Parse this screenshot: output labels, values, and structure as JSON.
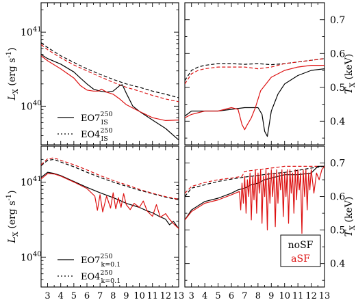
{
  "colors": {
    "noSF": "#000000",
    "aSF": "#dd1111"
  },
  "chart_data": [
    {
      "id": "top-left",
      "type": "line",
      "ylabel": "L_X (erg s^-1)",
      "yscale": "log",
      "xlim": [
        2.5,
        13
      ],
      "ylim": [
        3e+39,
        2.5e+41
      ],
      "yticks": [
        {
          "v": 1e+40,
          "label": "10^40"
        },
        {
          "v": 1e+41,
          "label": "10^41"
        }
      ],
      "legend": [
        {
          "text": "EO7",
          "sup": "250",
          "sub": "IS",
          "style": "solid"
        },
        {
          "text": "EO4",
          "sup": "250",
          "sub": "IS",
          "style": "dotted"
        }
      ],
      "series": [
        {
          "model": "EO4",
          "sf": "noSF",
          "dash": true,
          "x": [
            2.5,
            3,
            4,
            5,
            6,
            7,
            8,
            9,
            10,
            11,
            12,
            13
          ],
          "y": [
            7.2e+40,
            6.2e+40,
            4.8e+40,
            3.9e+40,
            3.2e+40,
            2.7e+40,
            2.3e+40,
            2e+40,
            1.8e+40,
            1.6e+40,
            1.45e+40,
            1.3e+40
          ]
        },
        {
          "model": "EO4",
          "sf": "aSF",
          "dash": true,
          "x": [
            2.5,
            3,
            4,
            5,
            6,
            7,
            8,
            9,
            10,
            11,
            12,
            13
          ],
          "y": [
            6.8e+40,
            5.8e+40,
            4.5e+40,
            3.6e+40,
            3e+40,
            2.5e+40,
            2.1e+40,
            1.8e+40,
            1.6e+40,
            1.4e+40,
            1.25e+40,
            1.15e+40
          ]
        },
        {
          "model": "EO7",
          "sf": "noSF",
          "dash": false,
          "x": [
            2.5,
            3,
            4,
            5,
            5.5,
            6,
            6.5,
            7,
            7.5,
            8,
            8.5,
            8.7,
            9,
            9.5,
            10,
            11,
            12,
            13
          ],
          "y": [
            5e+40,
            4.4e+40,
            3.7e+40,
            2.9e+40,
            2.4e+40,
            2e+40,
            1.7e+40,
            1.6e+40,
            1.55e+40,
            1.6e+40,
            1.9e+40,
            1.95e+40,
            1.5e+40,
            1e+40,
            8.5e+39,
            6.5e+39,
            5e+39,
            3.5e+39
          ]
        },
        {
          "model": "EO7",
          "sf": "aSF",
          "dash": false,
          "x": [
            2.5,
            3,
            4,
            5,
            5.5,
            6,
            6.5,
            6.9,
            7.1,
            7.5,
            8,
            8.5,
            9,
            10,
            11,
            12,
            13
          ],
          "y": [
            4.8e+40,
            4.1e+40,
            3.2e+40,
            2.4e+40,
            1.9e+40,
            1.65e+40,
            1.6e+40,
            1.6e+40,
            1.7e+40,
            1.55e+40,
            1.45e+40,
            1.25e+40,
            1.05e+40,
            8.5e+39,
            7e+39,
            6.4e+39,
            6.5e+39
          ]
        }
      ]
    },
    {
      "id": "top-right",
      "type": "line",
      "ylabel": "T_X (keV)",
      "xlim": [
        2.5,
        13
      ],
      "ylim": [
        0.33,
        0.75
      ],
      "yticks": [
        {
          "v": 0.4,
          "label": "0.4"
        },
        {
          "v": 0.5,
          "label": "0.5"
        },
        {
          "v": 0.6,
          "label": "0.6"
        },
        {
          "v": 0.7,
          "label": "0.7"
        }
      ],
      "series": [
        {
          "model": "EO4",
          "sf": "noSF",
          "dash": true,
          "x": [
            2.5,
            3,
            3.5,
            4,
            5,
            6,
            7,
            8,
            9,
            10,
            11,
            12,
            13
          ],
          "y": [
            0.52,
            0.55,
            0.56,
            0.565,
            0.57,
            0.57,
            0.568,
            0.57,
            0.567,
            0.57,
            0.575,
            0.58,
            0.585
          ]
        },
        {
          "model": "EO4",
          "sf": "aSF",
          "dash": true,
          "x": [
            2.5,
            3,
            3.5,
            4,
            5,
            6,
            7,
            8,
            9,
            10,
            11,
            12,
            13
          ],
          "y": [
            0.51,
            0.54,
            0.55,
            0.555,
            0.56,
            0.56,
            0.56,
            0.555,
            0.56,
            0.57,
            0.575,
            0.58,
            0.585
          ]
        },
        {
          "model": "EO7",
          "sf": "noSF",
          "dash": false,
          "x": [
            2.5,
            3,
            4,
            5,
            6,
            7,
            7.5,
            8,
            8.3,
            8.5,
            8.7,
            9,
            9.5,
            10,
            11,
            12,
            13
          ],
          "y": [
            0.415,
            0.43,
            0.43,
            0.43,
            0.435,
            0.44,
            0.44,
            0.44,
            0.42,
            0.37,
            0.355,
            0.43,
            0.48,
            0.51,
            0.535,
            0.55,
            0.555
          ]
        },
        {
          "model": "EO7",
          "sf": "aSF",
          "dash": false,
          "x": [
            2.5,
            3,
            4,
            5,
            6,
            6.5,
            6.8,
            7.0,
            7.2,
            7.5,
            7.8,
            8.2,
            9,
            10,
            11,
            12,
            13
          ],
          "y": [
            0.41,
            0.42,
            0.43,
            0.43,
            0.44,
            0.435,
            0.39,
            0.375,
            0.39,
            0.41,
            0.44,
            0.49,
            0.53,
            0.55,
            0.56,
            0.565,
            0.565
          ]
        }
      ]
    },
    {
      "id": "bottom-left",
      "type": "line",
      "ylabel": "L_X (erg s^-1)",
      "yscale": "log",
      "xlabel": "t (Gyr)",
      "xlim": [
        2.5,
        13
      ],
      "ylim": [
        4e+39,
        3e+41
      ],
      "xticks": [
        3,
        4,
        5,
        6,
        7,
        8,
        9,
        10,
        11,
        12,
        13
      ],
      "yticks": [
        {
          "v": 1e+40,
          "label": "10^40"
        },
        {
          "v": 1e+41,
          "label": "10^41"
        }
      ],
      "legend": [
        {
          "text": "EO7",
          "sup": "250",
          "sub": "k=0.1",
          "style": "solid"
        },
        {
          "text": "EO4",
          "sup": "250",
          "sub": "k=0.1",
          "style": "dotted"
        }
      ],
      "series": [
        {
          "model": "EO4",
          "sf": "noSF",
          "dash": true,
          "x": [
            2.5,
            3,
            3.5,
            4,
            5,
            6,
            7,
            8,
            9,
            10,
            11,
            12,
            13
          ],
          "y": [
            1.65e+41,
            1.95e+41,
            2e+41,
            1.85e+41,
            1.6e+41,
            1.35e+41,
            1.15e+41,
            1e+41,
            8.8e+40,
            7.8e+40,
            7e+40,
            6.3e+40,
            5.8e+40
          ]
        },
        {
          "model": "EO4",
          "sf": "aSF",
          "dash": true,
          "x": [
            2.5,
            3,
            3.5,
            4,
            5,
            6,
            7,
            8,
            9,
            10,
            11,
            12,
            13
          ],
          "y": [
            1.7e+41,
            2.05e+41,
            2.1e+41,
            1.95e+41,
            1.7e+41,
            1.45e+41,
            1.22e+41,
            1.05e+41,
            9.2e+40,
            8e+40,
            7.1e+40,
            6.4e+40,
            5.9e+40
          ]
        },
        {
          "model": "EO7",
          "sf": "noSF",
          "dash": false,
          "x": [
            2.5,
            3,
            3.5,
            4,
            5,
            6,
            7,
            8,
            8.5,
            9,
            9.5,
            10,
            10.5,
            11,
            11.5,
            12,
            12.3,
            12.6,
            13
          ],
          "y": [
            1.15e+41,
            1.35e+41,
            1.3e+41,
            1.22e+41,
            1.02e+41,
            8.5e+40,
            7.2e+40,
            6.2e+40,
            5.7e+40,
            5.2e+40,
            4.9e+40,
            4.6e+40,
            4.2e+40,
            3.9e+40,
            3.5e+40,
            3.2e+40,
            2.7e+40,
            3e+40,
            2.4e+40
          ]
        },
        {
          "model": "EO7",
          "sf": "aSF",
          "dash": false,
          "x": [
            2.5,
            3,
            3.5,
            4,
            5,
            6,
            6.6,
            6.8,
            7,
            7.2,
            7.5,
            7.8,
            8,
            8.2,
            8.4,
            8.6,
            8.8,
            9,
            9.3,
            9.6,
            10,
            10.3,
            10.6,
            11,
            11.3,
            11.6,
            12,
            12.3,
            12.6,
            13
          ],
          "y": [
            1.1e+41,
            1.3e+41,
            1.28e+41,
            1.2e+41,
            1e+41,
            8.2e+40,
            6.5e+40,
            4.2e+40,
            6.8e+40,
            4e+40,
            6.5e+40,
            4.5e+40,
            7.2e+40,
            4.4e+40,
            6.2e+40,
            4.6e+40,
            7e+40,
            5e+40,
            4.3e+40,
            5.2e+40,
            4.6e+40,
            5.6e+40,
            4.1e+40,
            3.5e+40,
            5e+40,
            3.4e+40,
            3.8e+40,
            3.2e+40,
            2.8e+40,
            2.4e+40
          ]
        }
      ]
    },
    {
      "id": "bottom-right",
      "type": "line",
      "ylabel": "T_X (keV)",
      "xlabel": "t (Gyr)",
      "xlim": [
        2.5,
        13
      ],
      "ylim": [
        0.33,
        0.75
      ],
      "xticks": [
        3,
        4,
        5,
        6,
        7,
        8,
        9,
        10,
        11,
        12,
        13
      ],
      "yticks": [
        {
          "v": 0.4,
          "label": "0.4"
        },
        {
          "v": 0.5,
          "label": "0.5"
        },
        {
          "v": 0.6,
          "label": "0.6"
        },
        {
          "v": 0.7,
          "label": "0.7"
        }
      ],
      "legend_box": [
        {
          "text": "noSF",
          "color_key": "noSF"
        },
        {
          "text": "aSF",
          "color_key": "aSF"
        }
      ],
      "series": [
        {
          "model": "EO4",
          "sf": "noSF",
          "dash": true,
          "x": [
            2.5,
            3,
            4,
            5,
            6,
            7,
            8,
            9,
            10,
            11,
            12,
            13
          ],
          "y": [
            0.6,
            0.625,
            0.635,
            0.645,
            0.652,
            0.658,
            0.663,
            0.668,
            0.672,
            0.678,
            0.685,
            0.69
          ]
        },
        {
          "model": "EO4",
          "sf": "aSF",
          "dash": true,
          "x": [
            2.5,
            3,
            4,
            5,
            6,
            6.8,
            7,
            8,
            9,
            10,
            11,
            12,
            13
          ],
          "y": [
            0.61,
            0.63,
            0.642,
            0.65,
            0.655,
            0.66,
            0.675,
            0.68,
            0.685,
            0.69,
            0.69,
            0.69,
            0.69
          ]
        },
        {
          "model": "EO7",
          "sf": "noSF",
          "dash": false,
          "x": [
            2.5,
            3,
            4,
            5,
            6,
            6.5,
            7,
            7.5,
            8,
            8.5,
            9,
            9.5,
            10,
            11,
            12,
            12.5,
            13
          ],
          "y": [
            0.53,
            0.56,
            0.585,
            0.595,
            0.61,
            0.62,
            0.625,
            0.635,
            0.64,
            0.65,
            0.655,
            0.66,
            0.665,
            0.665,
            0.67,
            0.69,
            0.69
          ]
        },
        {
          "model": "EO7",
          "sf": "aSF",
          "dash": false,
          "x": [
            2.5,
            3,
            4,
            5,
            6,
            6.6,
            6.7,
            6.8,
            6.9,
            7.0,
            7.1,
            7.2,
            7.3,
            7.4,
            7.5,
            7.6,
            7.7,
            7.8,
            7.9,
            8.0,
            8.1,
            8.2,
            8.3,
            8.4,
            8.5,
            8.6,
            8.7,
            8.8,
            8.9,
            9.0,
            9.1,
            9.2,
            9.3,
            9.4,
            9.5,
            9.6,
            9.7,
            9.8,
            9.9,
            10.0,
            10.1,
            10.2,
            10.3,
            10.4,
            10.5,
            10.6,
            10.7,
            10.8,
            10.9,
            11.0,
            11.1,
            11.2,
            11.3,
            11.4,
            11.5,
            11.6,
            11.7,
            11.8,
            11.9,
            12.0,
            12.2,
            12.4,
            12.6,
            12.8,
            13
          ],
          "y": [
            0.53,
            0.555,
            0.58,
            0.59,
            0.605,
            0.615,
            0.56,
            0.64,
            0.58,
            0.66,
            0.55,
            0.65,
            0.6,
            0.67,
            0.53,
            0.66,
            0.59,
            0.68,
            0.55,
            0.67,
            0.61,
            0.68,
            0.52,
            0.66,
            0.6,
            0.68,
            0.5,
            0.67,
            0.58,
            0.68,
            0.6,
            0.67,
            0.51,
            0.68,
            0.58,
            0.67,
            0.62,
            0.68,
            0.54,
            0.67,
            0.6,
            0.68,
            0.52,
            0.68,
            0.61,
            0.67,
            0.55,
            0.68,
            0.59,
            0.68,
            0.62,
            0.67,
            0.49,
            0.68,
            0.6,
            0.68,
            0.56,
            0.67,
            0.62,
            0.68,
            0.61,
            0.67,
            0.65,
            0.68,
            0.69
          ]
        }
      ]
    }
  ]
}
